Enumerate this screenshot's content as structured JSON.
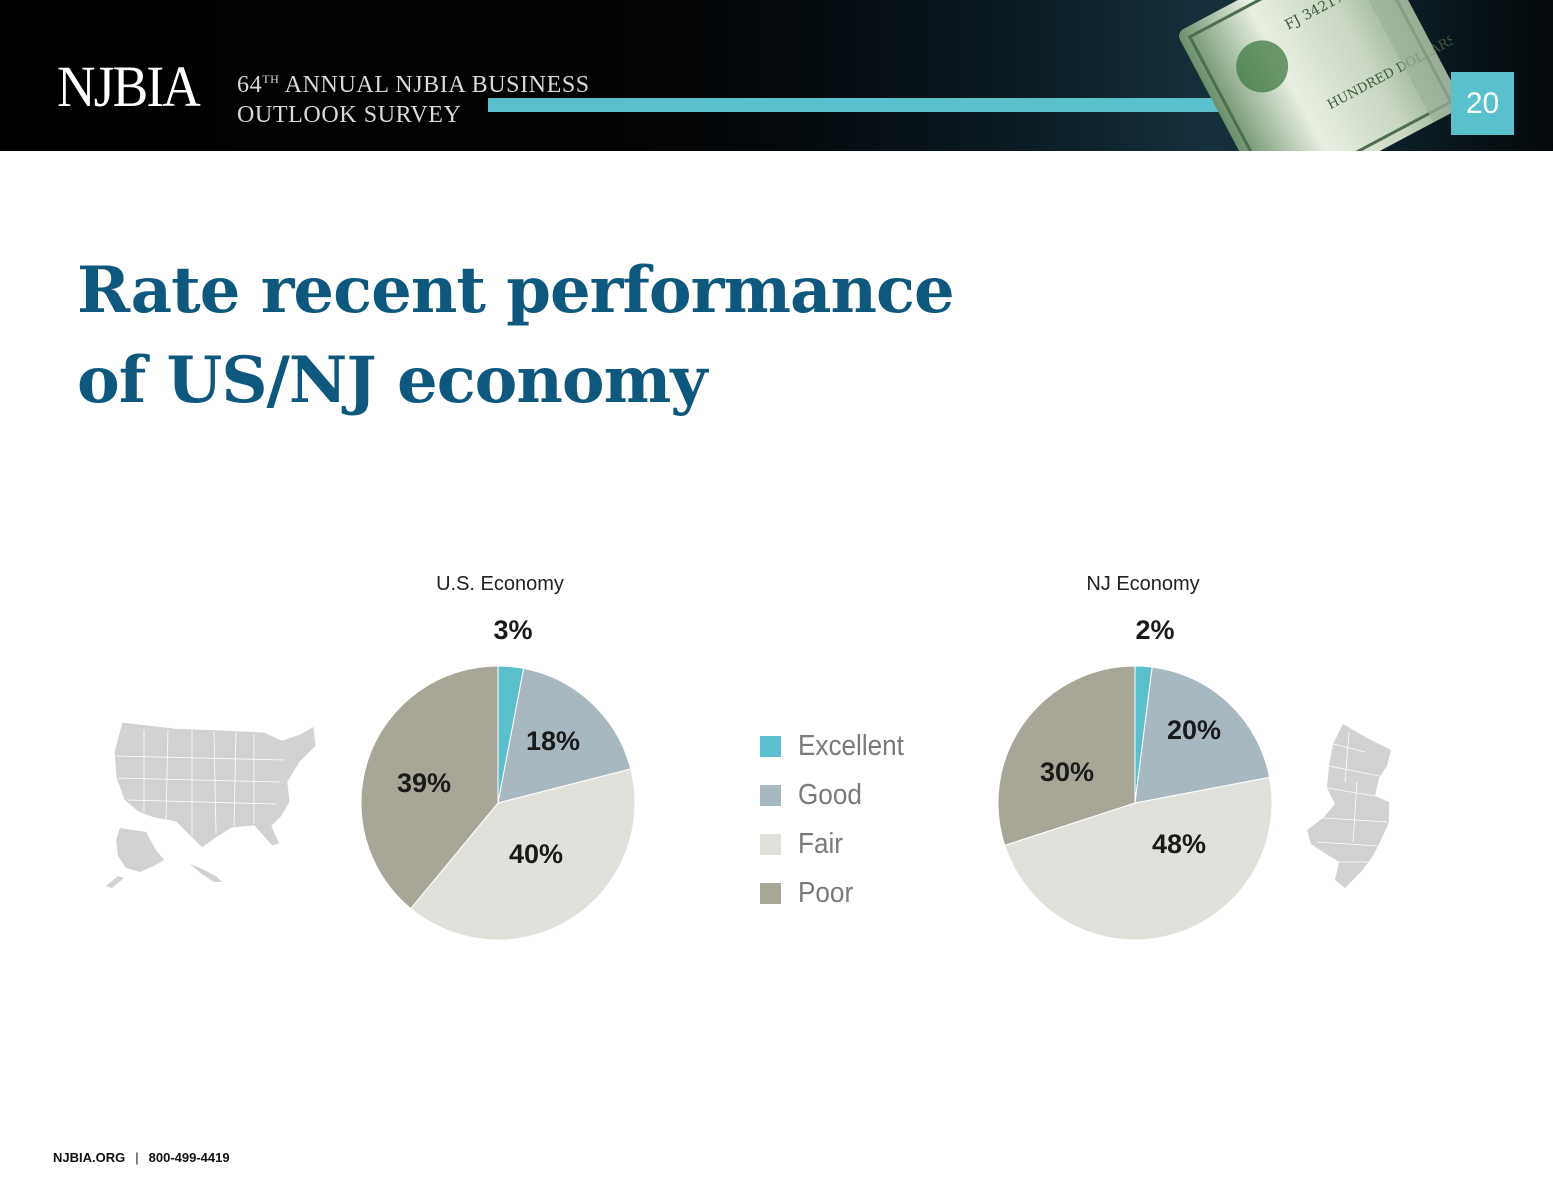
{
  "header": {
    "logo": "NJBIA",
    "survey_num": "64",
    "survey_sup": "TH",
    "survey_line1_rest": " ANNUAL NJBIA BUSINESS",
    "survey_line2": "OUTLOOK SURVEY",
    "page_number": "20",
    "accent_color": "#5bc0ce"
  },
  "title": {
    "line1": "Rate recent performance",
    "line2": "of US/NJ economy",
    "color": "#0e587d"
  },
  "legend": [
    {
      "label": "Excellent",
      "color": "#5bc0ce"
    },
    {
      "label": "Good",
      "color": "#a8b8c0"
    },
    {
      "label": "Fair",
      "color": "#e1e1dc"
    },
    {
      "label": "Poor",
      "color": "#a8a696"
    }
  ],
  "chart_data": [
    {
      "type": "pie",
      "title": "U.S. Economy",
      "categories": [
        "Excellent",
        "Good",
        "Fair",
        "Poor"
      ],
      "values": [
        3,
        18,
        40,
        39
      ],
      "labels": [
        "3%",
        "18%",
        "40%",
        "39%"
      ],
      "colors": [
        "#5bc0ce",
        "#a8b8c0",
        "#e1e1dc",
        "#a8a696"
      ]
    },
    {
      "type": "pie",
      "title": "NJ Economy",
      "categories": [
        "Excellent",
        "Good",
        "Fair",
        "Poor"
      ],
      "values": [
        2,
        20,
        48,
        30
      ],
      "labels": [
        "2%",
        "20%",
        "48%",
        "30%"
      ],
      "colors": [
        "#5bc0ce",
        "#a8b8c0",
        "#e1e1dc",
        "#a8a696"
      ]
    }
  ],
  "footer": {
    "site": "NJBIA.ORG",
    "separator": "|",
    "phone": "800-499-4419"
  }
}
